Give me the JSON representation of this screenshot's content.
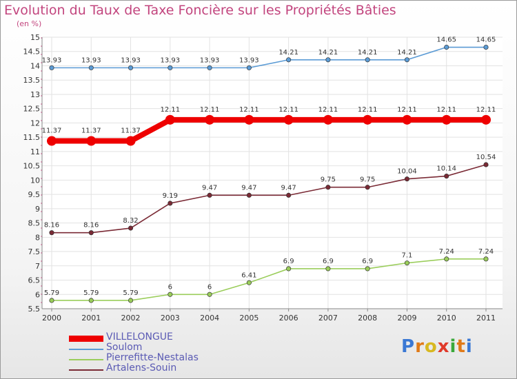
{
  "header": {
    "title": "Evolution du Taux de Taxe Foncière sur les Propriétés Bâties",
    "unit": "(en %)"
  },
  "brand": {
    "text": "Proxiti",
    "letter_colors": [
      "#3a78d4",
      "#e07a18",
      "#d8b820",
      "#e03a2a",
      "#3aa83a",
      "#e07a18",
      "#3a78d4"
    ]
  },
  "chart_data": {
    "type": "line",
    "title": "Evolution du Taux de Taxe Foncière sur les Propriétés Bâties",
    "ylabel": "(en %)",
    "xlabel": "",
    "categories": [
      "2000",
      "2001",
      "2002",
      "2003",
      "2004",
      "2005",
      "2006",
      "2007",
      "2008",
      "2009",
      "2010",
      "2011"
    ],
    "ylim": [
      5.5,
      15
    ],
    "yticks": [
      "5.5",
      "6",
      "6.5",
      "7",
      "7.5",
      "8",
      "8.5",
      "9",
      "9.5",
      "10",
      "10.5",
      "11",
      "11.5",
      "12",
      "12.5",
      "13",
      "13.5",
      "14",
      "14.5",
      "15"
    ],
    "grid": true,
    "legend_position": "bottom-left",
    "series": [
      {
        "name": "VILLELONGUE",
        "color": "#ee0000",
        "emphasis": true,
        "values": [
          11.37,
          11.37,
          11.37,
          12.11,
          12.11,
          12.11,
          12.11,
          12.11,
          12.11,
          12.11,
          12.11,
          12.11
        ],
        "labels": [
          "11.37",
          "11.37",
          "11.37",
          "12.11",
          "12.11",
          "12.11",
          "12.11",
          "12.11",
          "12.11",
          "12.11",
          "12.11",
          "12.11"
        ]
      },
      {
        "name": "Soulom",
        "color": "#5b9bd5",
        "emphasis": false,
        "values": [
          13.93,
          13.93,
          13.93,
          13.93,
          13.93,
          13.93,
          14.21,
          14.21,
          14.21,
          14.21,
          14.65,
          14.65
        ],
        "labels": [
          "13.93",
          "13.93",
          "13.93",
          "13.93",
          "13.93",
          "13.93",
          "14.21",
          "14.21",
          "14.21",
          "14.21",
          "14.65",
          "14.65"
        ]
      },
      {
        "name": "Pierrefitte-Nestalas",
        "color": "#9acd5a",
        "emphasis": false,
        "values": [
          5.79,
          5.79,
          5.79,
          6,
          6,
          6.41,
          6.9,
          6.9,
          6.9,
          7.1,
          7.24,
          7.24
        ],
        "labels": [
          "5.79",
          "5.79",
          "5.79",
          "6",
          "6",
          "6.41",
          "6.9",
          "6.9",
          "6.9",
          "7.1",
          "7.24",
          "7.24"
        ]
      },
      {
        "name": "Artalens-Souin",
        "color": "#7a2a35",
        "emphasis": false,
        "values": [
          8.16,
          8.16,
          8.32,
          9.19,
          9.47,
          9.47,
          9.47,
          9.75,
          9.75,
          10.04,
          10.14,
          10.54
        ],
        "labels": [
          "8.16",
          "8.16",
          "8.32",
          "9.19",
          "9.47",
          "9.47",
          "9.47",
          "9.75",
          "9.75",
          "10.04",
          "10.14",
          "10.54"
        ]
      }
    ]
  }
}
